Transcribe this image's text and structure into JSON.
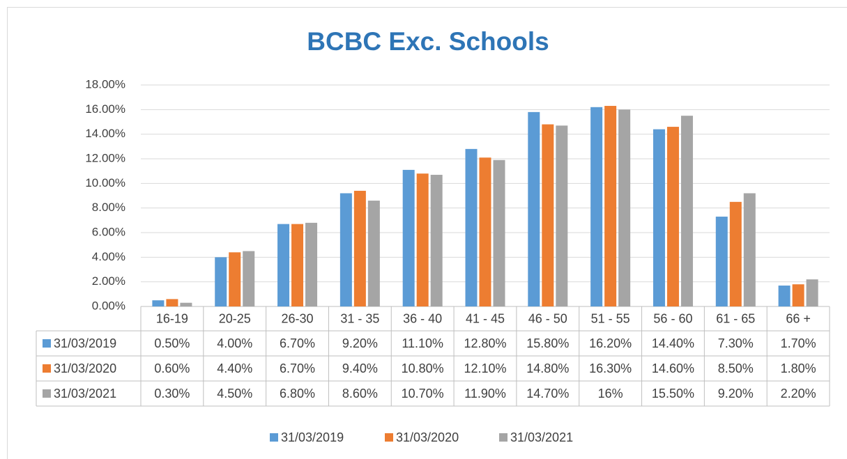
{
  "chart_data": {
    "type": "bar",
    "title": "BCBC Exc. Schools",
    "categories": [
      "16-19",
      "20-25",
      "26-30",
      "31 - 35",
      "36 - 40",
      "41 - 45",
      "46 - 50",
      "51 - 55",
      "56 - 60",
      "61 - 65",
      "66 +"
    ],
    "series": [
      {
        "name": "31/03/2019",
        "color": "#5b9bd5",
        "values": [
          0.5,
          4.0,
          6.7,
          9.2,
          11.1,
          12.8,
          15.8,
          16.2,
          14.4,
          7.3,
          1.7
        ],
        "value_labels": [
          "0.50%",
          "4.00%",
          "6.70%",
          "9.20%",
          "11.10%",
          "12.80%",
          "15.80%",
          "16.20%",
          "14.40%",
          "7.30%",
          "1.70%"
        ]
      },
      {
        "name": "31/03/2020",
        "color": "#ed7d31",
        "values": [
          0.6,
          4.4,
          6.7,
          9.4,
          10.8,
          12.1,
          14.8,
          16.3,
          14.6,
          8.5,
          1.8
        ],
        "value_labels": [
          "0.60%",
          "4.40%",
          "6.70%",
          "9.40%",
          "10.80%",
          "12.10%",
          "14.80%",
          "16.30%",
          "14.60%",
          "8.50%",
          "1.80%"
        ]
      },
      {
        "name": "31/03/2021",
        "color": "#a5a5a5",
        "values": [
          0.3,
          4.5,
          6.8,
          8.6,
          10.7,
          11.9,
          14.7,
          16,
          15.5,
          9.2,
          2.2
        ],
        "value_labels": [
          "0.30%",
          "4.50%",
          "6.80%",
          "8.60%",
          "10.70%",
          "11.90%",
          "14.70%",
          "16%",
          "15.50%",
          "9.20%",
          "2.20%"
        ]
      }
    ],
    "ylim": [
      0,
      18
    ],
    "yticks": [
      {
        "value": 0,
        "label": "0.00%"
      },
      {
        "value": 2,
        "label": "2.00%"
      },
      {
        "value": 4,
        "label": "4.00%"
      },
      {
        "value": 6,
        "label": "6.00%"
      },
      {
        "value": 8,
        "label": "8.00%"
      },
      {
        "value": 10,
        "label": "10.00%"
      },
      {
        "value": 12,
        "label": "12.00%"
      },
      {
        "value": 14,
        "label": "14.00%"
      },
      {
        "value": 16,
        "label": "16.00%"
      },
      {
        "value": 18,
        "label": "18.00%"
      }
    ],
    "grid": true,
    "legend": "bottom"
  }
}
